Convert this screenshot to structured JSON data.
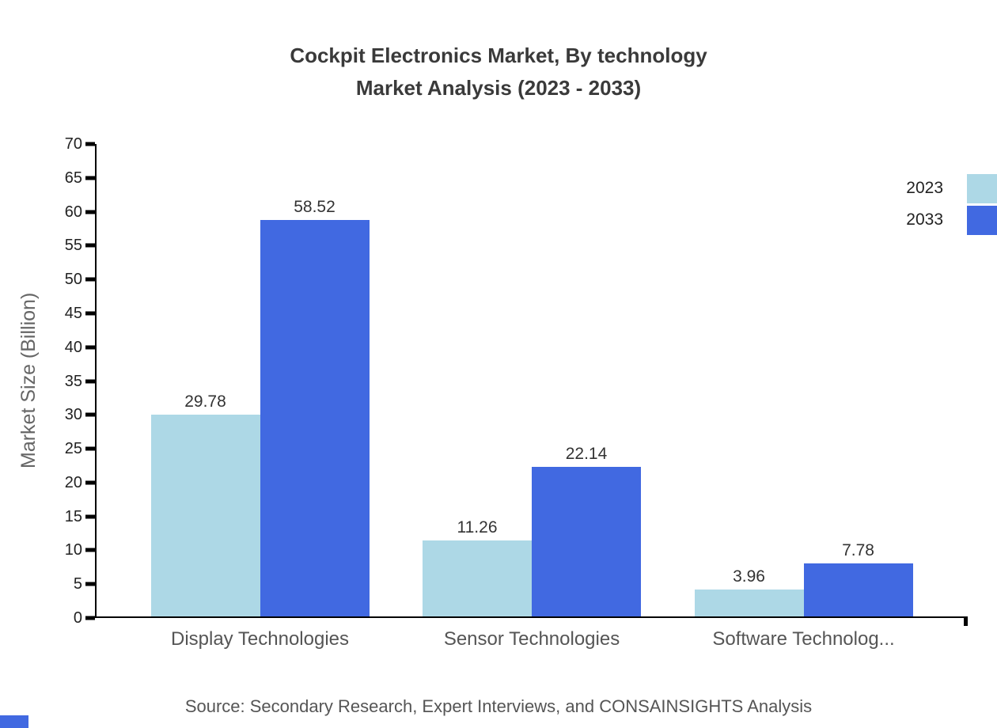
{
  "chart_data": {
    "type": "bar",
    "title": "Cockpit Electronics Market, By technology",
    "subtitle": "Market Analysis (2023 - 2033)",
    "ylabel": "Market Size (Billion)",
    "xlabel": "",
    "categories": [
      "Display Technologies",
      "Sensor Technologies",
      "Software Technolog..."
    ],
    "series": [
      {
        "name": "2023",
        "color": "#add8e6",
        "values": [
          29.78,
          11.26,
          3.96
        ]
      },
      {
        "name": "2033",
        "color": "#4169e1",
        "values": [
          58.52,
          22.14,
          7.78
        ]
      }
    ],
    "ylim": [
      0,
      70
    ],
    "yticks": [
      0,
      5,
      10,
      15,
      20,
      25,
      30,
      35,
      40,
      45,
      50,
      55,
      60,
      65,
      70
    ],
    "grid": false,
    "legend_position": "top-right",
    "source": "Source: Secondary Research, Expert Interviews, and CONSAINSIGHTS Analysis"
  }
}
